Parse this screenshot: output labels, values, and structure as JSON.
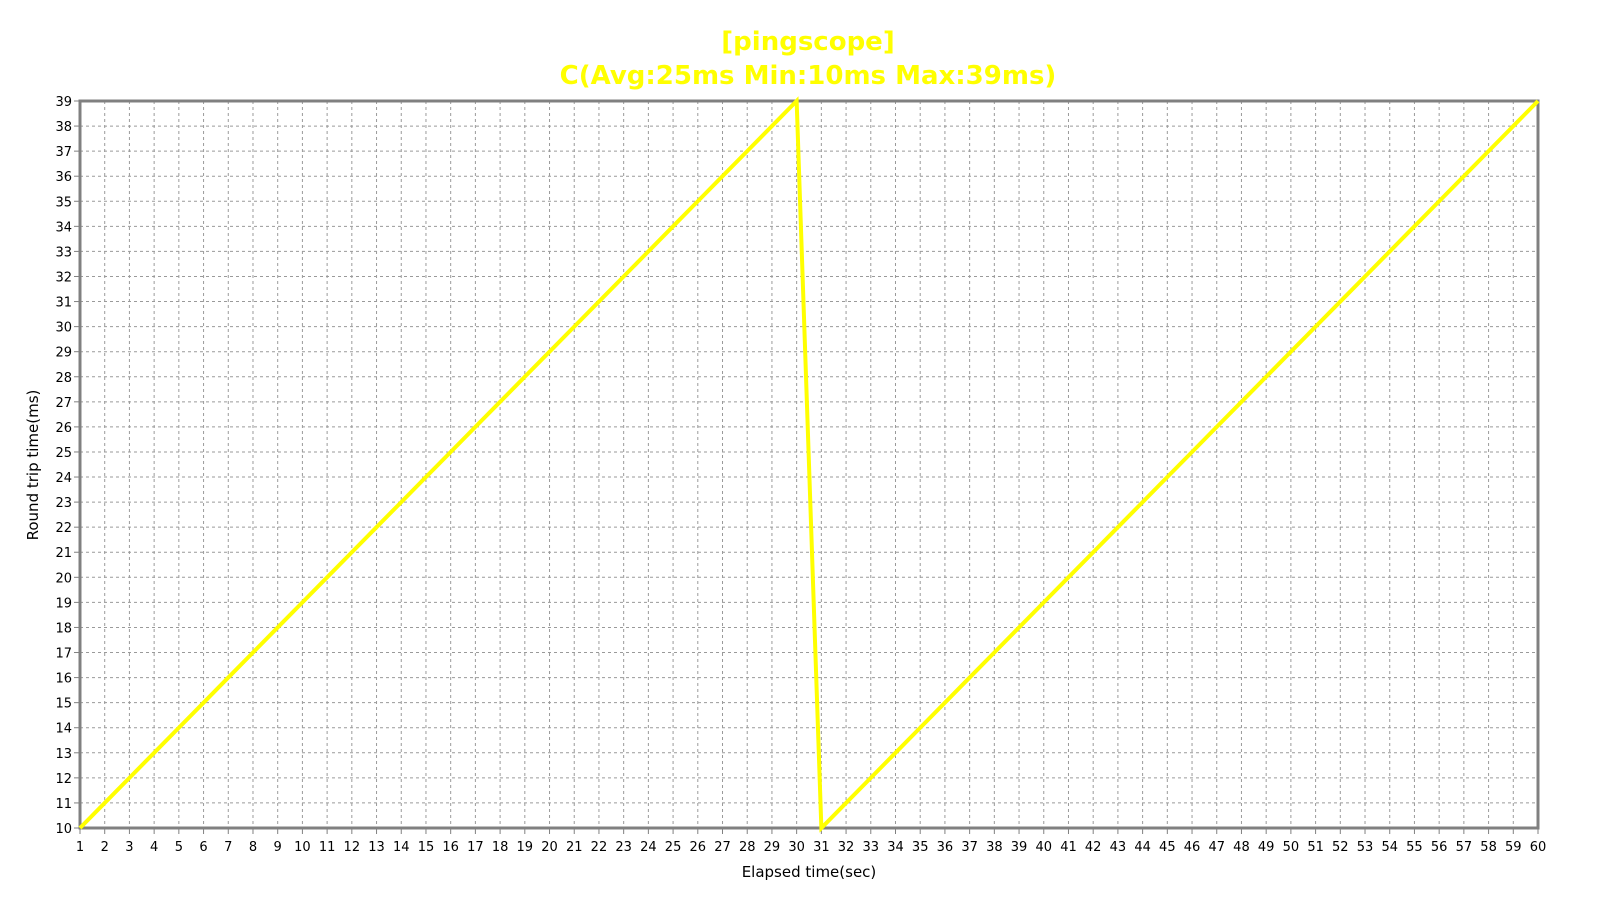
{
  "chart_data": {
    "type": "line",
    "title": "[pingscope]",
    "subtitle": "C(Avg:25ms Min:10ms Max:39ms)",
    "xlabel": "Elapsed time(sec)",
    "ylabel": "Round trip time(ms)",
    "xlim": [
      1,
      60
    ],
    "ylim": [
      10,
      39
    ],
    "grid": true,
    "grid_style": "dashed",
    "title_color": "#ffff00",
    "line_color": "#ffff00",
    "series": [
      {
        "name": "",
        "x": [
          1,
          2,
          3,
          4,
          5,
          6,
          7,
          8,
          9,
          10,
          11,
          12,
          13,
          14,
          15,
          16,
          17,
          18,
          19,
          20,
          21,
          22,
          23,
          24,
          25,
          26,
          27,
          28,
          29,
          30,
          31,
          32,
          33,
          34,
          35,
          36,
          37,
          38,
          39,
          40,
          41,
          42,
          43,
          44,
          45,
          46,
          47,
          48,
          49,
          50,
          51,
          52,
          53,
          54,
          55,
          56,
          57,
          58,
          59,
          60
        ],
        "y": [
          10,
          11,
          12,
          13,
          14,
          15,
          16,
          17,
          18,
          19,
          20,
          21,
          22,
          23,
          24,
          25,
          26,
          27,
          28,
          29,
          30,
          31,
          32,
          33,
          34,
          35,
          36,
          37,
          38,
          39,
          10,
          11,
          12,
          13,
          14,
          15,
          16,
          17,
          18,
          19,
          20,
          21,
          22,
          23,
          24,
          25,
          26,
          27,
          28,
          29,
          30,
          31,
          32,
          33,
          34,
          35,
          36,
          37,
          38,
          39
        ]
      }
    ]
  }
}
